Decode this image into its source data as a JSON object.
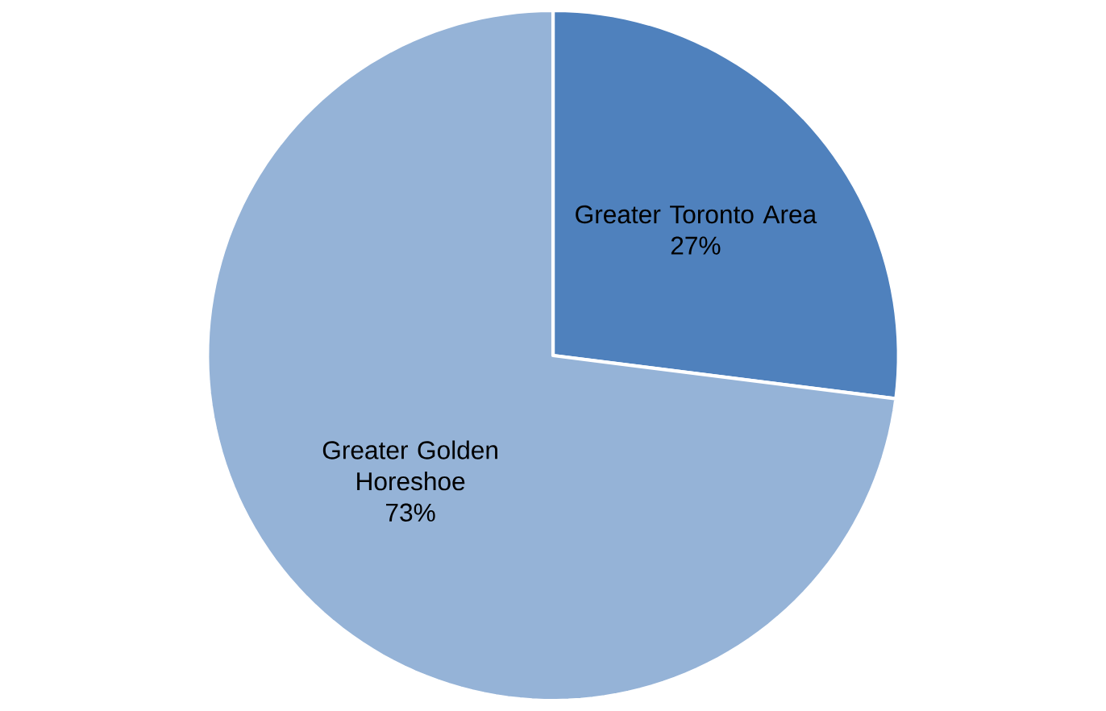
{
  "chart_data": {
    "type": "pie",
    "categories": [
      "Greater Toronto Area",
      "Greater Golden Horeshoe"
    ],
    "values": [
      27,
      73
    ],
    "value_labels": [
      "27%",
      "73%"
    ],
    "colors": [
      "#4f81bd",
      "#95b3d7"
    ]
  }
}
